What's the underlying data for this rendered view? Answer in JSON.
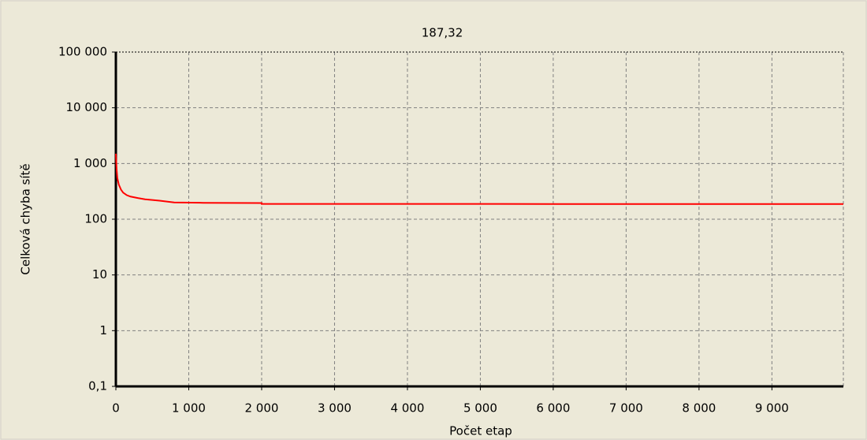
{
  "chart_data": {
    "type": "line",
    "title": "187,32",
    "title_color": "#0000ff",
    "xlabel": "Počet etap",
    "ylabel": "Celková chyba sítě",
    "color": "#ff0000",
    "log_y": true,
    "grid": true,
    "x": [
      0,
      10,
      20,
      40,
      70,
      100,
      150,
      200,
      300,
      400,
      600,
      800,
      1200,
      1999,
      2000,
      4000,
      6000,
      8000,
      9980
    ],
    "values": [
      1500,
      800,
      550,
      420,
      340,
      300,
      270,
      255,
      240,
      228,
      215,
      200,
      197,
      195,
      188,
      187.8,
      187.6,
      187.4,
      187.32
    ],
    "xlim": [
      0,
      9980
    ],
    "ylim": [
      0.1,
      100000
    ],
    "xticks": [
      0,
      {
        "value": 1000,
        "label": "1 000"
      },
      {
        "value": 2000,
        "label": "2 000"
      },
      {
        "value": 3000,
        "label": "3 000"
      },
      {
        "value": 4000,
        "label": "4 000"
      },
      {
        "value": 5000,
        "label": "5 000"
      },
      {
        "value": 6000,
        "label": "6 000"
      },
      {
        "value": 7000,
        "label": "7 000"
      },
      {
        "value": 8000,
        "label": "8 000"
      },
      {
        "value": 9000,
        "label": "9 000"
      }
    ],
    "yticks": [
      {
        "value": 0.1,
        "label": "0,1"
      },
      1,
      10,
      100,
      {
        "value": 1000,
        "label": "1 000"
      },
      {
        "value": 10000,
        "label": "10 000"
      },
      {
        "value": 100000,
        "label": "100 000"
      }
    ]
  }
}
